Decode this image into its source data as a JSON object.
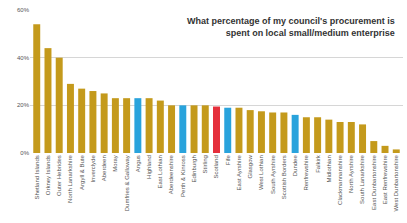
{
  "chart_data": {
    "type": "bar",
    "title": "What percentage of my council's procurement is spent on local small/medium enterprise",
    "categories": [
      "Shetland Islands",
      "Orkney Islands",
      "Outer Hebrides",
      "North Lanarkshire",
      "Argyll & Bute",
      "Inverclyde",
      "Aberdeen",
      "Moray",
      "Dumfries & Galloway",
      "Angus",
      "Highland",
      "East Lothian",
      "Aberdeenshire",
      "Perth & Kinross",
      "Edinburgh",
      "Stirling",
      "Scotland",
      "Fife",
      "East Ayrshire",
      "Glasgow",
      "West Lothian",
      "South Ayrshire",
      "Scottish Borders",
      "Dundee",
      "Renfrewshire",
      "Falkirk",
      "Midlothian",
      "Clackmannanshire",
      "North Ayrshire",
      "South Lanarkshire",
      "East Dunbartonshire",
      "East Renfrewshire",
      "West Dunbartonshire"
    ],
    "values": [
      54,
      44,
      40,
      29,
      27,
      26,
      25,
      23,
      23,
      23,
      23,
      22,
      20,
      20,
      20,
      20,
      19.5,
      19,
      19,
      18,
      17.5,
      17,
      17,
      16,
      15,
      15,
      14,
      13,
      13,
      12,
      5,
      3,
      1.5
    ],
    "colors": [
      "#c49a1c",
      "#c49a1c",
      "#c49a1c",
      "#c49a1c",
      "#c49a1c",
      "#c49a1c",
      "#c49a1c",
      "#c49a1c",
      "#c49a1c",
      "#29a3dc",
      "#c49a1c",
      "#c49a1c",
      "#c49a1c",
      "#29a3dc",
      "#c49a1c",
      "#c49a1c",
      "#e5303c",
      "#29a3dc",
      "#c49a1c",
      "#c49a1c",
      "#c49a1c",
      "#c49a1c",
      "#c49a1c",
      "#29a3dc",
      "#c49a1c",
      "#c49a1c",
      "#c49a1c",
      "#c49a1c",
      "#c49a1c",
      "#c49a1c",
      "#c49a1c",
      "#c49a1c",
      "#c49a1c"
    ],
    "ylim": [
      0,
      60
    ],
    "yticks": [
      {
        "value": 0,
        "label": "0%"
      },
      {
        "value": 20,
        "label": "20%"
      },
      {
        "value": 40,
        "label": "40%"
      },
      {
        "value": 60,
        "label": "60%"
      }
    ],
    "grid": true
  }
}
